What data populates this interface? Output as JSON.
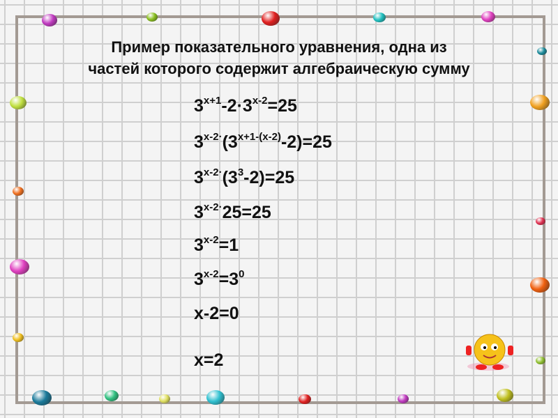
{
  "title": [
    "Пример показательного уравнения, одна из",
    "частей которого содержит алгебраическую сумму"
  ],
  "equations": [
    [
      {
        "t": "3",
        "sup": "x+1"
      },
      {
        "t": "-2·3",
        "sup": "x-2"
      },
      {
        "t": "=25"
      }
    ],
    [
      {
        "t": "3",
        "sup": "x-2·"
      },
      {
        "t": "(3",
        "sup": "x+1-(x-2)"
      },
      {
        "t": "-2)=25"
      }
    ],
    [
      {
        "t": "3",
        "sup": "x-2·"
      },
      {
        "t": "(3",
        "sup": "3"
      },
      {
        "t": "-2)=25"
      }
    ],
    [
      {
        "t": "3",
        "sup": "x-2·"
      },
      {
        "t": "25=25"
      }
    ],
    [
      {
        "t": "3",
        "sup": "x-2"
      },
      {
        "t": "=1"
      }
    ],
    [
      {
        "t": "3",
        "sup": "x-2"
      },
      {
        "t": "=3",
        "sup": "0"
      }
    ],
    [
      {
        "t": "x-2=0"
      }
    ],
    [
      {
        "t": "x=2"
      }
    ]
  ]
}
